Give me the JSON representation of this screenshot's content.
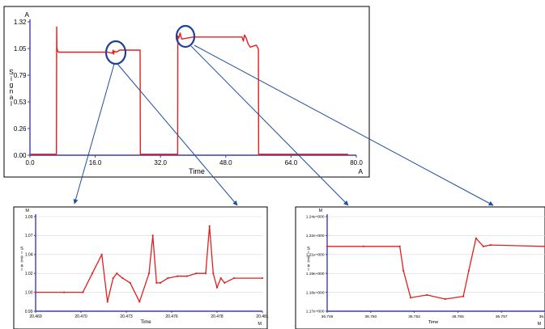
{
  "colors": {
    "trace": "#e02020",
    "axis": "#3b3bb8",
    "connector": "#1f4fa0",
    "circle": "#1f3f9a"
  },
  "chart_data": [
    {
      "type": "line",
      "xlabel": "Time",
      "x_unit": "A",
      "y_unit": "A",
      "ylabel": "Signal",
      "xlim": [
        0,
        80
      ],
      "ylim": [
        0,
        1.32
      ],
      "x_ticks": [
        "0.0",
        "16.0",
        "32.0",
        "48.0",
        "64.0",
        "80.0"
      ],
      "y_ticks": [
        "0.00",
        "0.26",
        "0.53",
        "0.79",
        "1.05",
        "1.32"
      ],
      "series": [
        {
          "x": [
            0,
            6.5,
            6.55,
            6.6,
            6.8,
            7.0,
            12,
            16,
            19,
            20.2,
            20.4,
            20.5,
            20.7,
            21.2,
            22,
            25,
            27,
            27.05,
            30,
            33,
            35,
            36.2,
            36.25,
            36.5,
            36.8,
            37.2,
            40,
            48,
            52,
            52.3,
            52.6,
            53,
            53.5,
            54,
            55.5,
            56,
            56.05,
            60,
            70,
            78
          ],
          "y": [
            0.01,
            0.01,
            1.27,
            1.06,
            1.03,
            1.02,
            1.02,
            1.02,
            1.02,
            1.01,
            1.04,
            1.0,
            1.03,
            1.02,
            1.04,
            1.04,
            1.04,
            0.01,
            0.01,
            0.01,
            0.01,
            0.01,
            1.18,
            1.16,
            1.21,
            1.15,
            1.17,
            1.17,
            1.17,
            1.13,
            1.19,
            1.16,
            1.1,
            1.07,
            1.09,
            1.05,
            0.01,
            0.01,
            0.01,
            0.01
          ]
        }
      ]
    },
    {
      "type": "line",
      "xlabel": "Time",
      "x_unit": "M",
      "y_unit": "M",
      "ylabel": "Signal",
      "xlim": [
        20.469,
        20.481
      ],
      "ylim": [
        0.99,
        1.09
      ],
      "x_ticks": [
        "20.469",
        "20.470",
        "20.473",
        "20.476",
        "20.478",
        "20.481"
      ],
      "y_ticks": [
        "0.99",
        "1.00",
        "1.02",
        "1.04",
        "1.07",
        "1.09"
      ],
      "series": [
        {
          "x": [
            20.469,
            20.4705,
            20.4715,
            20.472,
            20.4725,
            20.4728,
            20.4731,
            20.4733,
            20.4736,
            20.474,
            20.4745,
            20.475,
            20.4752,
            20.4754,
            20.4756,
            20.476,
            20.4765,
            20.477,
            20.4775,
            20.478,
            20.4782,
            20.4784,
            20.4786,
            20.4788,
            20.479,
            20.4795,
            20.481
          ],
          "y": [
            1.01,
            1.01,
            1.01,
            1.03,
            1.05,
            1.0,
            1.025,
            1.03,
            1.025,
            1.02,
            1.0,
            1.03,
            1.07,
            1.02,
            1.02,
            1.025,
            1.027,
            1.027,
            1.03,
            1.03,
            1.08,
            1.03,
            1.015,
            1.025,
            1.02,
            1.025,
            1.025
          ]
        }
      ]
    },
    {
      "type": "line",
      "xlabel": "Time",
      "x_unit": "M",
      "y_unit": "M",
      "ylabel": "Signal",
      "xlim": [
        36.748,
        36.76
      ],
      "ylim": [
        1.17,
        1.24
      ],
      "x_ticks": [
        "36.748",
        "36.750",
        "36.752",
        "36.755",
        "36.757",
        "36.760"
      ],
      "y_ticks": [
        "1.17e+000",
        "1.18e+000",
        "1.19e+000",
        "1.21e+000",
        "1.22e+000",
        "1.24e+000"
      ],
      "series": [
        {
          "x": [
            36.748,
            36.75,
            36.752,
            36.7522,
            36.7526,
            36.7535,
            36.7545,
            36.7555,
            36.7558,
            36.7562,
            36.7566,
            36.757,
            36.76
          ],
          "y": [
            1.218,
            1.218,
            1.218,
            1.2,
            1.18,
            1.182,
            1.179,
            1.181,
            1.2,
            1.224,
            1.218,
            1.219,
            1.218
          ]
        }
      ]
    }
  ]
}
